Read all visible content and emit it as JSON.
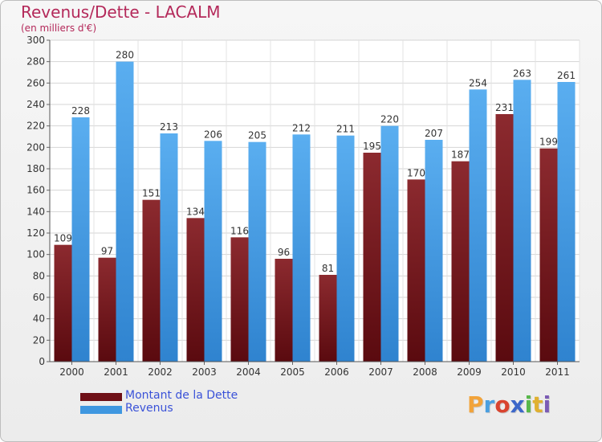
{
  "title": "Revenus/Dette - LACALM",
  "subtitle": "(en milliers d'€)",
  "colors": {
    "dette": "#7a1c22",
    "revenus": "#4aa3e8",
    "title": "#b4295a",
    "legend_text": "#3a52d8"
  },
  "legend": [
    {
      "label": "Montant de la Dette",
      "color": "#6e0f16"
    },
    {
      "label": "Revenus",
      "color": "#3f97e0"
    }
  ],
  "logo": {
    "text": "Proxiti"
  },
  "chart_data": {
    "type": "bar",
    "title": "Revenus/Dette - LACALM",
    "subtitle": "(en milliers d'€)",
    "categories": [
      "2000",
      "2001",
      "2002",
      "2003",
      "2004",
      "2005",
      "2006",
      "2007",
      "2008",
      "2009",
      "2010",
      "2011"
    ],
    "series": [
      {
        "name": "Montant de la Dette",
        "values": [
          109,
          97,
          151,
          134,
          116,
          96,
          81,
          195,
          170,
          187,
          231,
          199
        ]
      },
      {
        "name": "Revenus",
        "values": [
          228,
          280,
          213,
          206,
          205,
          212,
          211,
          220,
          207,
          254,
          263,
          261
        ]
      }
    ],
    "ylim": [
      0,
      300
    ],
    "yticks": [
      0,
      20,
      40,
      60,
      80,
      100,
      120,
      140,
      160,
      180,
      200,
      220,
      240,
      260,
      280,
      300
    ],
    "grid": true,
    "legend_position": "bottom-left"
  }
}
